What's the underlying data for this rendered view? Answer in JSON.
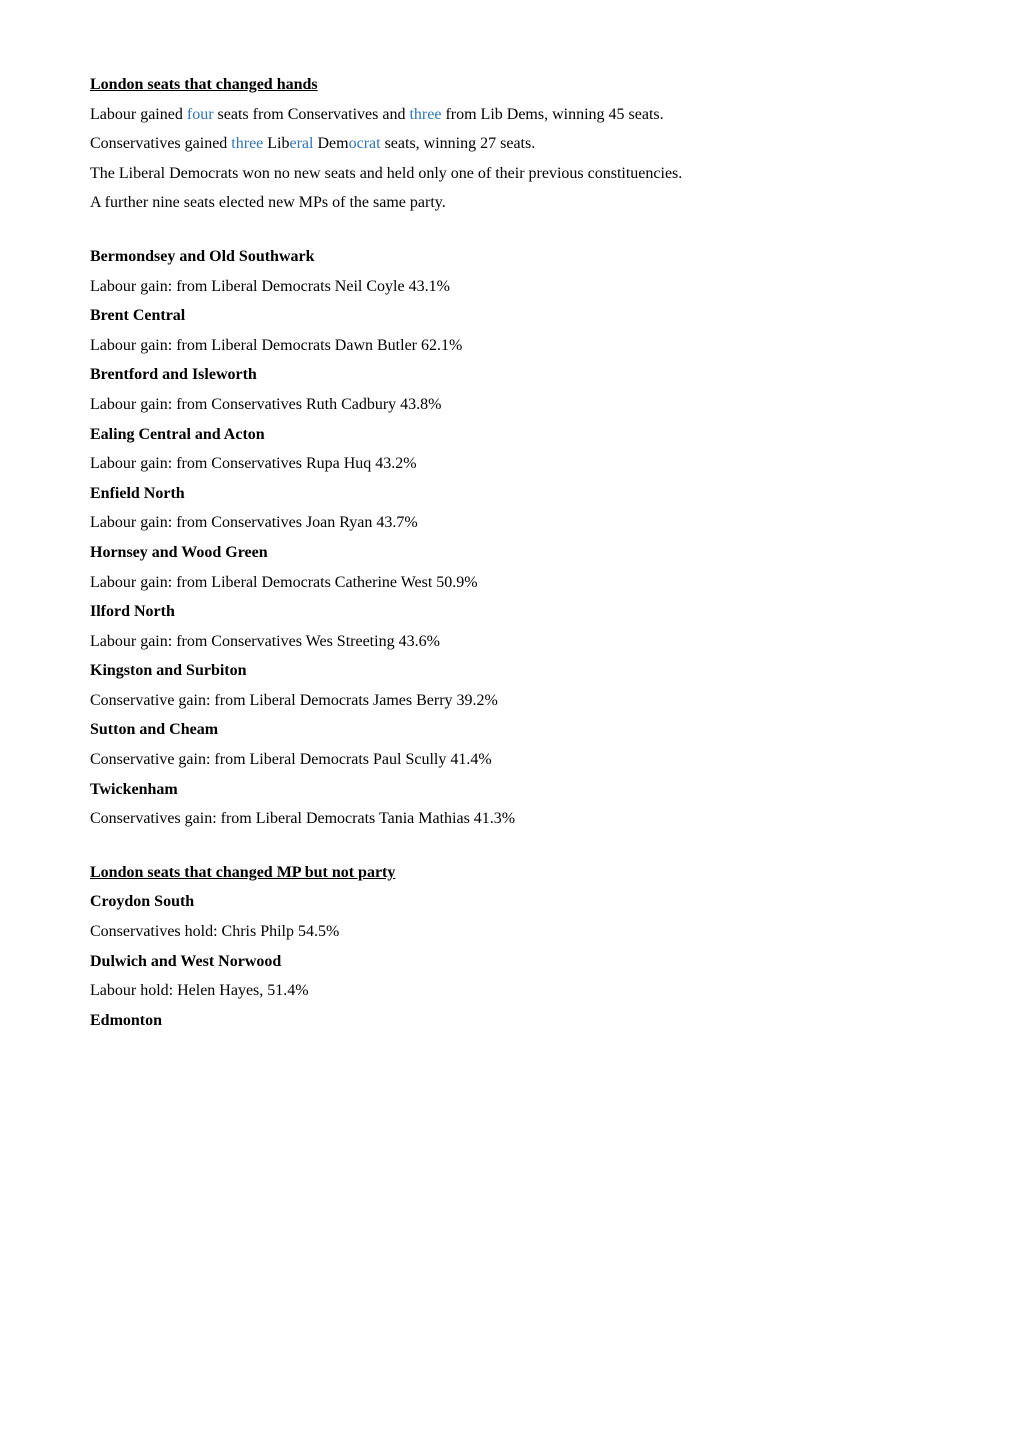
{
  "section1": {
    "heading": "London seats that changed hands",
    "intro": [
      {
        "parts": [
          {
            "text": "Labour gained ",
            "blue": false
          },
          {
            "text": "four",
            "blue": true
          },
          {
            "text": " seats from Conservatives and ",
            "blue": false
          },
          {
            "text": "three",
            "blue": true
          },
          {
            "text": " from Lib Dems, winning 45 seats.",
            "blue": false
          }
        ]
      },
      {
        "parts": [
          {
            "text": "Conservatives gained ",
            "blue": false
          },
          {
            "text": "three",
            "blue": true
          },
          {
            "text": " Lib",
            "blue": false
          },
          {
            "text": "eral",
            "blue": true
          },
          {
            "text": " Dem",
            "blue": false
          },
          {
            "text": "ocrat",
            "blue": true
          },
          {
            "text": " seats, winning 27 seats.",
            "blue": false
          }
        ]
      },
      {
        "parts": [
          {
            "text": "The Liberal Democrats won no new seats and held only one of their previous constituencies.",
            "blue": false
          }
        ]
      },
      {
        "parts": [
          {
            "text": "A further nine seats elected new MPs of the same party.",
            "blue": false
          }
        ]
      }
    ],
    "results": [
      {
        "constituency": "Bermondsey and Old Southwark",
        "detail": "Labour gain: from Liberal Democrats Neil Coyle 43.1%"
      },
      {
        "constituency": "Brent Central",
        "detail": "Labour gain: from Liberal Democrats Dawn Butler 62.1%"
      },
      {
        "constituency": "Brentford and Isleworth",
        "detail": "Labour gain: from Conservatives Ruth Cadbury 43.8%"
      },
      {
        "constituency": "Ealing Central and Acton",
        "detail": "Labour gain: from Conservatives Rupa Huq  43.2%"
      },
      {
        "constituency": "Enfield North",
        "detail": "Labour gain: from Conservatives Joan Ryan  43.7%"
      },
      {
        "constituency": "Hornsey and Wood Green",
        "detail": "Labour gain: from Liberal Democrats Catherine West 50.9%"
      },
      {
        "constituency": "Ilford North",
        "detail": "Labour gain: from Conservatives Wes Streeting 43.6%"
      },
      {
        "constituency": "Kingston and Surbiton",
        "detail": "Conservative gain: from Liberal Democrats James Berry 39.2%"
      },
      {
        "constituency": "Sutton and Cheam",
        "detail": "Conservative gain: from Liberal Democrats Paul Scully 41.4%"
      },
      {
        "constituency": "Twickenham",
        "detail": "Conservatives gain: from Liberal Democrats Tania Mathias 41.3%"
      }
    ]
  },
  "section2": {
    "heading": "London seats that changed MP but not party",
    "results": [
      {
        "constituency": "Croydon South",
        "detail": "Conservatives hold: Chris Philp 54.5%"
      },
      {
        "constituency": "Dulwich and West Norwood",
        "detail": "Labour hold: Helen Hayes,  51.4%"
      },
      {
        "constituency": "Edmonton",
        "detail": ""
      }
    ]
  }
}
